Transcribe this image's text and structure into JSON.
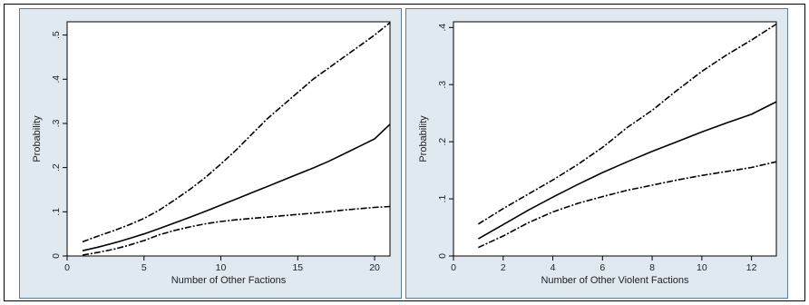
{
  "chart_data": [
    {
      "type": "line",
      "xlabel": "Number of Other Factions",
      "ylabel": "Probability",
      "xlim": [
        0,
        21
      ],
      "ylim": [
        0,
        0.53
      ],
      "xticks": [
        0,
        5,
        10,
        15,
        20
      ],
      "xtick_labels": [
        "0",
        "5",
        "10",
        "15",
        "20"
      ],
      "yticks": [
        0,
        0.1,
        0.2,
        0.3,
        0.4,
        0.5
      ],
      "ytick_labels": [
        "0",
        ".1",
        ".2",
        ".3",
        ".4",
        ".5"
      ],
      "grid": false,
      "series": [
        {
          "style": "solid",
          "x": [
            1,
            2,
            3,
            4,
            5,
            6,
            7,
            8,
            9,
            10,
            11,
            12,
            13,
            14,
            15,
            16,
            17,
            18,
            19,
            20,
            21
          ],
          "values": [
            0.012,
            0.02,
            0.029,
            0.039,
            0.05,
            0.062,
            0.075,
            0.088,
            0.101,
            0.115,
            0.129,
            0.143,
            0.157,
            0.171,
            0.185,
            0.199,
            0.214,
            0.231,
            0.248,
            0.265,
            0.298
          ]
        },
        {
          "style": "dashed",
          "x": [
            1,
            2,
            3,
            4,
            5,
            6,
            7,
            8,
            9,
            10,
            11,
            12,
            13,
            14,
            15,
            16,
            17,
            18,
            19,
            20,
            21
          ],
          "values": [
            0.032,
            0.045,
            0.057,
            0.07,
            0.085,
            0.104,
            0.127,
            0.151,
            0.178,
            0.208,
            0.24,
            0.275,
            0.31,
            0.34,
            0.37,
            0.4,
            0.425,
            0.45,
            0.475,
            0.5,
            0.528
          ]
        },
        {
          "style": "dashed",
          "x": [
            1,
            2,
            3,
            4,
            5,
            6,
            7,
            8,
            9,
            10,
            11,
            12,
            13,
            14,
            15,
            16,
            17,
            18,
            19,
            20,
            21
          ],
          "values": [
            0.002,
            0.008,
            0.015,
            0.024,
            0.035,
            0.048,
            0.058,
            0.066,
            0.073,
            0.078,
            0.082,
            0.085,
            0.088,
            0.091,
            0.094,
            0.097,
            0.1,
            0.104,
            0.107,
            0.11,
            0.112
          ]
        }
      ]
    },
    {
      "type": "line",
      "xlabel": "Number of Other Violent Factions",
      "ylabel": "Probability",
      "xlim": [
        0,
        13
      ],
      "ylim": [
        0,
        0.41
      ],
      "xticks": [
        0,
        2,
        4,
        6,
        8,
        10,
        12
      ],
      "xtick_labels": [
        "0",
        "2",
        "4",
        "6",
        "8",
        "10",
        "12"
      ],
      "yticks": [
        0,
        0.1,
        0.2,
        0.3,
        0.4
      ],
      "ytick_labels": [
        "0",
        ".1",
        ".2",
        ".3",
        ".4"
      ],
      "grid": false,
      "series": [
        {
          "style": "solid",
          "x": [
            1,
            2,
            3,
            4,
            5,
            6,
            7,
            8,
            9,
            10,
            11,
            12,
            13
          ],
          "values": [
            0.03,
            0.055,
            0.08,
            0.103,
            0.125,
            0.146,
            0.165,
            0.183,
            0.2,
            0.217,
            0.233,
            0.248,
            0.27
          ]
        },
        {
          "style": "dashed",
          "x": [
            1,
            2,
            3,
            4,
            5,
            6,
            7,
            8,
            9,
            10,
            11,
            12,
            13
          ],
          "values": [
            0.056,
            0.083,
            0.108,
            0.133,
            0.16,
            0.19,
            0.225,
            0.255,
            0.29,
            0.323,
            0.352,
            0.378,
            0.406
          ]
        },
        {
          "style": "dashed",
          "x": [
            1,
            2,
            3,
            4,
            5,
            6,
            7,
            8,
            9,
            10,
            11,
            12,
            13
          ],
          "values": [
            0.015,
            0.035,
            0.058,
            0.077,
            0.092,
            0.104,
            0.115,
            0.124,
            0.133,
            0.141,
            0.148,
            0.155,
            0.165
          ]
        }
      ]
    }
  ]
}
